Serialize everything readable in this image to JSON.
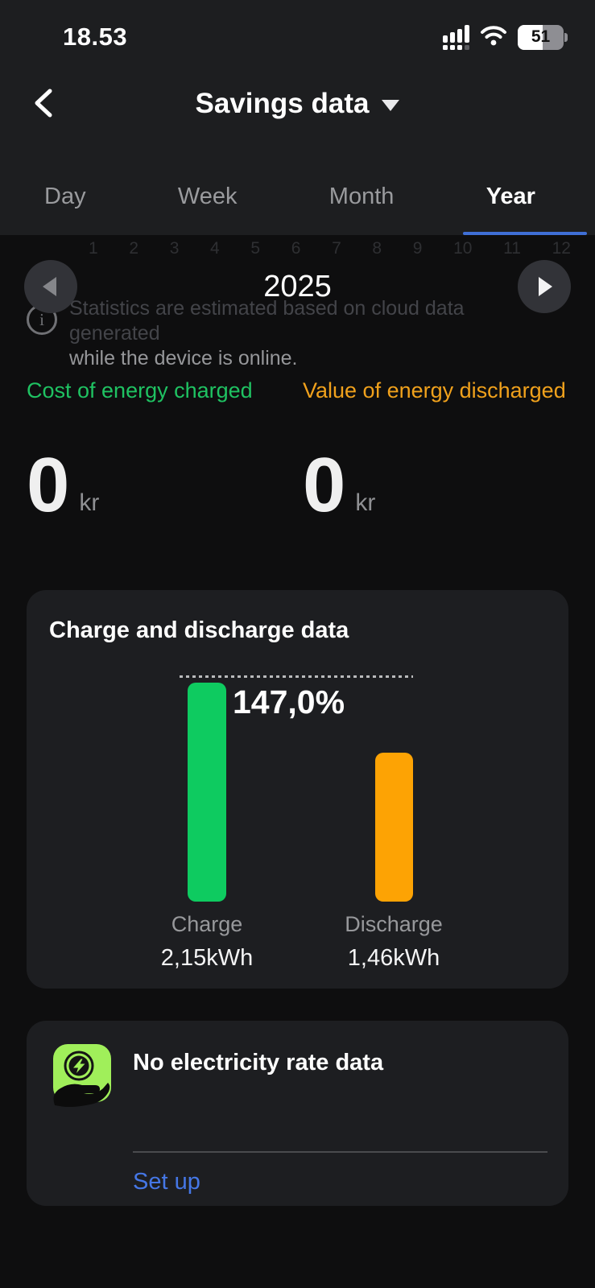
{
  "status_bar": {
    "time": "18.53",
    "battery_percent": "51"
  },
  "header": {
    "title": "Savings data"
  },
  "tabs": {
    "items": [
      {
        "label": "Day",
        "active": false
      },
      {
        "label": "Week",
        "active": false
      },
      {
        "label": "Month",
        "active": false
      },
      {
        "label": "Year",
        "active": true
      }
    ],
    "active_underline_color": "#3f6fd6"
  },
  "months": [
    "1",
    "2",
    "3",
    "4",
    "5",
    "6",
    "7",
    "8",
    "9",
    "10",
    "11",
    "12"
  ],
  "year_nav": {
    "year": "2025",
    "prev_enabled": false,
    "next_enabled": true
  },
  "info_note": {
    "line1": "Statistics are estimated based on cloud data generated",
    "line2": "while the device is online."
  },
  "stats": {
    "left": {
      "label": "Cost of energy charged",
      "value": "0",
      "unit": "kr",
      "label_color": "#1fc262"
    },
    "right": {
      "label": "Value of energy discharged",
      "value": "0",
      "unit": "kr",
      "label_color": "#f0a11c"
    }
  },
  "chart_card": {
    "title": "Charge and discharge data",
    "percent_label": "147,0%",
    "bars": [
      {
        "name": "Charge",
        "value_label": "2,15kWh"
      },
      {
        "name": "Discharge",
        "value_label": "1,46kWh"
      }
    ]
  },
  "chart_data": {
    "type": "bar",
    "categories": [
      "Charge",
      "Discharge"
    ],
    "values": [
      2.15,
      1.46
    ],
    "unit": "kWh",
    "colors": [
      "#0ecb60",
      "#fda304"
    ],
    "annotation": "147,0%",
    "title": "Charge and discharge data",
    "xlabel": "",
    "ylabel": "",
    "ylim": [
      0,
      2.15
    ],
    "grid": false,
    "legend": "none",
    "reference_line": "dotted line at max bar top"
  },
  "rate_card": {
    "title": "No electricity rate data",
    "action_label": "Set up",
    "action_color": "#4577e6",
    "icon": "hand-holding-energy",
    "icon_color": "#a0ef5a"
  }
}
